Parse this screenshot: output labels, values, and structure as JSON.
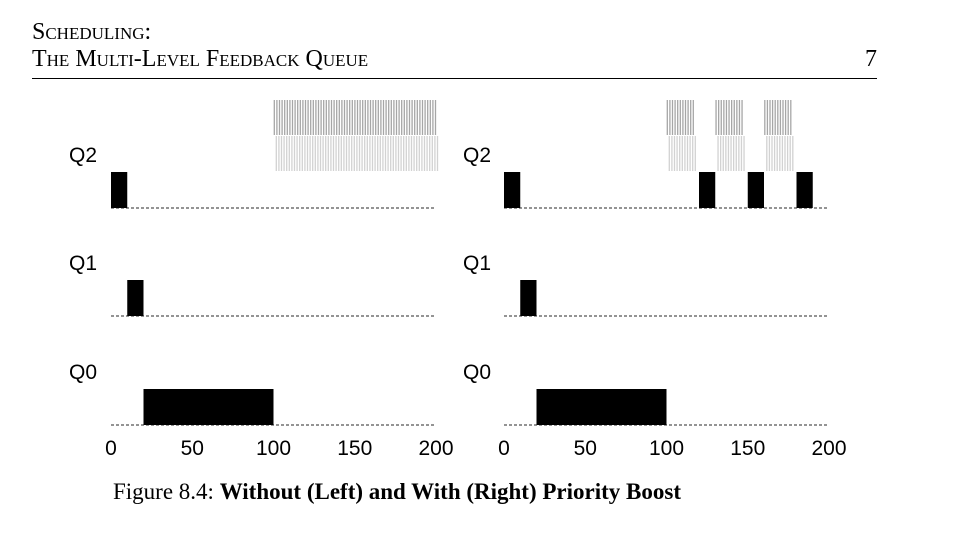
{
  "header": {
    "chapter_line1": "Scheduling:",
    "chapter_line2": "The Multi-Level Feedback Queue",
    "page_number": "7"
  },
  "caption": {
    "label": "Figure 8.4:",
    "title": "Without (Left) and With (Right) Priority Boost"
  },
  "colors": {
    "job_bar": "#000000",
    "io_job_dark": "#a6a6a6",
    "io_job_light": "#d2d2d2",
    "baseline": "#555555"
  },
  "chart_data": [
    {
      "type": "bar",
      "orientation": "timeline",
      "title": "",
      "queues": [
        "Q2",
        "Q1",
        "Q0"
      ],
      "xlim": [
        0,
        200
      ],
      "x_ticks": [
        0,
        50,
        100,
        150,
        200
      ],
      "long_job": [
        {
          "queue": "Q2",
          "start": 0,
          "end": 10
        },
        {
          "queue": "Q1",
          "start": 10,
          "end": 20
        },
        {
          "queue": "Q0",
          "start": 20,
          "end": 100
        }
      ],
      "interactive_jobs": [
        {
          "queue": "Q2",
          "start": 100,
          "end": 200
        }
      ]
    },
    {
      "type": "bar",
      "orientation": "timeline",
      "title": "",
      "queues": [
        "Q2",
        "Q1",
        "Q0"
      ],
      "xlim": [
        0,
        200
      ],
      "x_ticks": [
        0,
        50,
        100,
        150,
        200
      ],
      "long_job": [
        {
          "queue": "Q2",
          "start": 0,
          "end": 10
        },
        {
          "queue": "Q1",
          "start": 10,
          "end": 20
        },
        {
          "queue": "Q0",
          "start": 20,
          "end": 100
        },
        {
          "queue": "Q2",
          "start": 120,
          "end": 130
        },
        {
          "queue": "Q2",
          "start": 150,
          "end": 160
        },
        {
          "queue": "Q2",
          "start": 180,
          "end": 190
        }
      ],
      "interactive_jobs": [
        {
          "queue": "Q2",
          "start": 100,
          "end": 118
        },
        {
          "queue": "Q2",
          "start": 130,
          "end": 148
        },
        {
          "queue": "Q2",
          "start": 160,
          "end": 178
        }
      ]
    }
  ]
}
